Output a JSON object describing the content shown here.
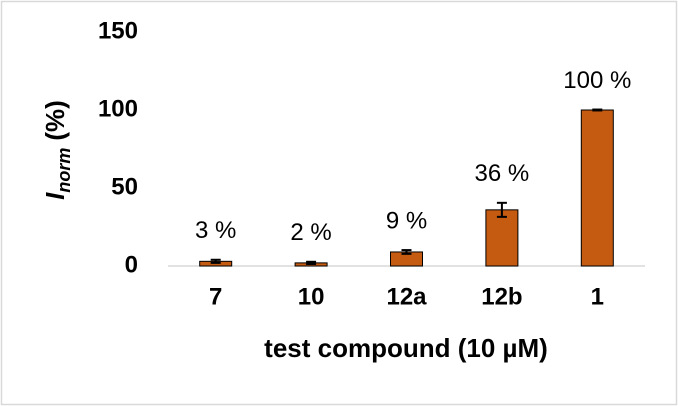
{
  "chart_data": {
    "type": "bar",
    "categories": [
      "7",
      "10",
      "12a",
      "12b",
      "1"
    ],
    "values": [
      3,
      2,
      9,
      36,
      100
    ],
    "errors": [
      1,
      0.7,
      1.2,
      4.5,
      0.3
    ],
    "value_labels": [
      "3 %",
      "2 %",
      "9 %",
      "36 %",
      "100 %"
    ],
    "color": "#c55a11",
    "ylim": [
      0,
      150
    ],
    "yticks": [
      0,
      50,
      100,
      150
    ],
    "ylabel": {
      "main": "I",
      "sub": "norm",
      "unit": "(%)"
    },
    "xlabel": "test compound (10 µM)"
  }
}
